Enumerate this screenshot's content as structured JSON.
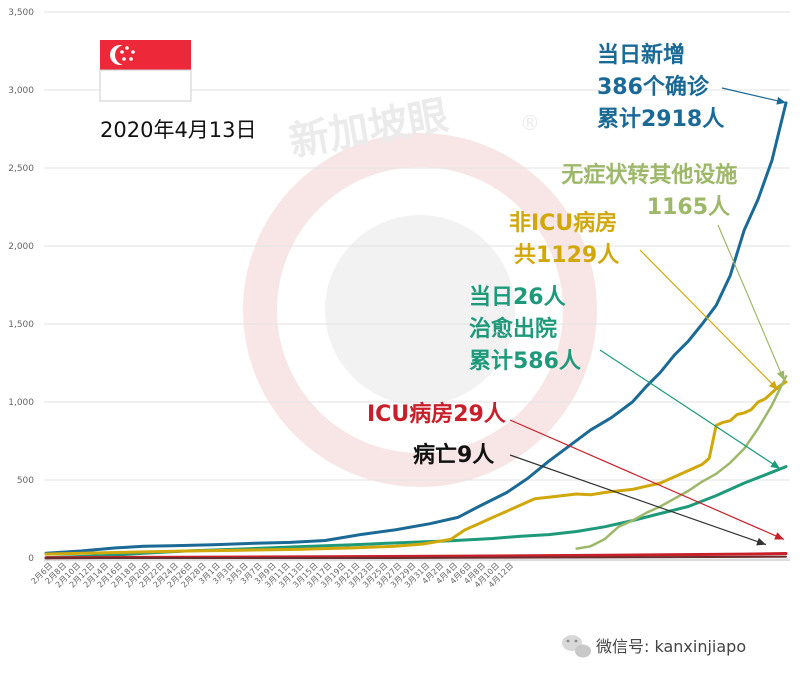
{
  "header": {
    "date": "2020年4月13日",
    "flag_colors": {
      "red": "#ED2939",
      "white": "#FFFFFF"
    }
  },
  "watermark": {
    "text": "新加坡眼",
    "mark": "®"
  },
  "footer": {
    "text": "微信号: kanxinjiapo",
    "icon": "wechat-icon"
  },
  "annotations": [
    {
      "key": "new",
      "lines": [
        "当日新增",
        "386个确诊",
        "累计2918人"
      ],
      "color": "#1B6A96"
    },
    {
      "key": "asym",
      "lines": [
        "无症状转其他设施",
        "1165人"
      ],
      "color": "#9DB86A"
    },
    {
      "key": "nonicu",
      "lines": [
        "非ICU病房",
        "共1129人"
      ],
      "color": "#D1A80B"
    },
    {
      "key": "recov",
      "lines": [
        "当日26人",
        "治愈出院",
        "累计586人"
      ],
      "color": "#1E9A7B"
    },
    {
      "key": "icu",
      "lines": [
        "ICU病房29人"
      ],
      "color": "#C8202A"
    },
    {
      "key": "death",
      "lines": [
        "病亡9人"
      ],
      "color": "#111111"
    }
  ],
  "chart_data": {
    "type": "line",
    "y_ticks": [
      "0",
      "500",
      "1,000",
      "1,500",
      "2,000",
      "2,500",
      "3,000",
      "3,500"
    ],
    "ylim": [
      0,
      3500
    ],
    "grid": true,
    "x_tick_labels": [
      "2月6日",
      "2月8日",
      "2月10日",
      "2月12日",
      "2月14日",
      "2月16日",
      "2月18日",
      "2月20日",
      "2月22日",
      "2月24日",
      "2月26日",
      "2月28日",
      "3月1日",
      "3月3日",
      "3月5日",
      "3月7日",
      "3月9日",
      "3月11日",
      "3月13日",
      "3月15日",
      "3月17日",
      "3月19日",
      "3月21日",
      "3月23日",
      "3月25日",
      "3月27日",
      "3月29日",
      "3月31日",
      "4月2日",
      "4月4日",
      "4月6日",
      "4月8日",
      "4月10日",
      "4月12日"
    ],
    "series": [
      {
        "key": "confirmed",
        "color": "#1B6A96",
        "width": 3,
        "points": [
          [
            0,
            30
          ],
          [
            5,
            45
          ],
          [
            10,
            65
          ],
          [
            14,
            75
          ],
          [
            18,
            78
          ],
          [
            24,
            85
          ],
          [
            30,
            95
          ],
          [
            35,
            100
          ],
          [
            40,
            112
          ],
          [
            45,
            150
          ],
          [
            50,
            180
          ],
          [
            55,
            220
          ],
          [
            59,
            260
          ],
          [
            62,
            330
          ],
          [
            66,
            420
          ],
          [
            69,
            510
          ],
          [
            72,
            620
          ],
          [
            75,
            720
          ],
          [
            78,
            820
          ],
          [
            81,
            900
          ],
          [
            84,
            1000
          ],
          [
            86,
            1100
          ],
          [
            88,
            1190
          ],
          [
            90,
            1300
          ],
          [
            92,
            1390
          ],
          [
            94,
            1500
          ],
          [
            96,
            1620
          ],
          [
            98,
            1810
          ],
          [
            100,
            2100
          ],
          [
            102,
            2300
          ],
          [
            104,
            2550
          ],
          [
            106,
            2918
          ]
        ]
      },
      {
        "key": "recovered",
        "color": "#1E9A7B",
        "width": 3,
        "points": [
          [
            0,
            2
          ],
          [
            8,
            15
          ],
          [
            14,
            30
          ],
          [
            20,
            45
          ],
          [
            28,
            58
          ],
          [
            36,
            72
          ],
          [
            44,
            85
          ],
          [
            52,
            100
          ],
          [
            58,
            110
          ],
          [
            64,
            125
          ],
          [
            68,
            140
          ],
          [
            72,
            150
          ],
          [
            76,
            170
          ],
          [
            80,
            200
          ],
          [
            84,
            240
          ],
          [
            88,
            285
          ],
          [
            92,
            330
          ],
          [
            96,
            400
          ],
          [
            100,
            480
          ],
          [
            104,
            550
          ],
          [
            106,
            586
          ]
        ]
      },
      {
        "key": "non_icu",
        "color": "#D1A80B",
        "width": 3,
        "points": [
          [
            0,
            25
          ],
          [
            10,
            35
          ],
          [
            20,
            45
          ],
          [
            28,
            50
          ],
          [
            36,
            55
          ],
          [
            44,
            65
          ],
          [
            50,
            75
          ],
          [
            54,
            90
          ],
          [
            58,
            120
          ],
          [
            60,
            180
          ],
          [
            62,
            220
          ],
          [
            64,
            260
          ],
          [
            66,
            300
          ],
          [
            68,
            340
          ],
          [
            70,
            380
          ],
          [
            72,
            390
          ],
          [
            74,
            400
          ],
          [
            76,
            410
          ],
          [
            78,
            405
          ],
          [
            80,
            420
          ],
          [
            82,
            430
          ],
          [
            84,
            440
          ],
          [
            86,
            460
          ],
          [
            88,
            480
          ],
          [
            90,
            520
          ],
          [
            92,
            560
          ],
          [
            94,
            600
          ],
          [
            95,
            640
          ],
          [
            96,
            850
          ],
          [
            97,
            870
          ],
          [
            98,
            880
          ],
          [
            99,
            920
          ],
          [
            100,
            930
          ],
          [
            101,
            950
          ],
          [
            102,
            1000
          ],
          [
            103,
            1020
          ],
          [
            104,
            1060
          ],
          [
            105,
            1100
          ],
          [
            106,
            1129
          ]
        ]
      },
      {
        "key": "asymptomatic",
        "color": "#9DB86A",
        "width": 2.5,
        "points": [
          [
            76,
            60
          ],
          [
            78,
            75
          ],
          [
            80,
            120
          ],
          [
            82,
            200
          ],
          [
            84,
            240
          ],
          [
            86,
            290
          ],
          [
            88,
            330
          ],
          [
            90,
            380
          ],
          [
            92,
            430
          ],
          [
            94,
            490
          ],
          [
            96,
            540
          ],
          [
            98,
            610
          ],
          [
            100,
            700
          ],
          [
            102,
            830
          ],
          [
            104,
            980
          ],
          [
            106,
            1165
          ]
        ]
      },
      {
        "key": "icu",
        "color": "#C8202A",
        "width": 3,
        "points": [
          [
            0,
            2
          ],
          [
            20,
            5
          ],
          [
            40,
            8
          ],
          [
            60,
            12
          ],
          [
            80,
            18
          ],
          [
            100,
            25
          ],
          [
            106,
            29
          ]
        ]
      },
      {
        "key": "deaths",
        "color": "#6B2E2E",
        "width": 2,
        "points": [
          [
            0,
            0
          ],
          [
            50,
            0
          ],
          [
            60,
            2
          ],
          [
            80,
            4
          ],
          [
            100,
            7
          ],
          [
            106,
            9
          ]
        ]
      }
    ]
  }
}
